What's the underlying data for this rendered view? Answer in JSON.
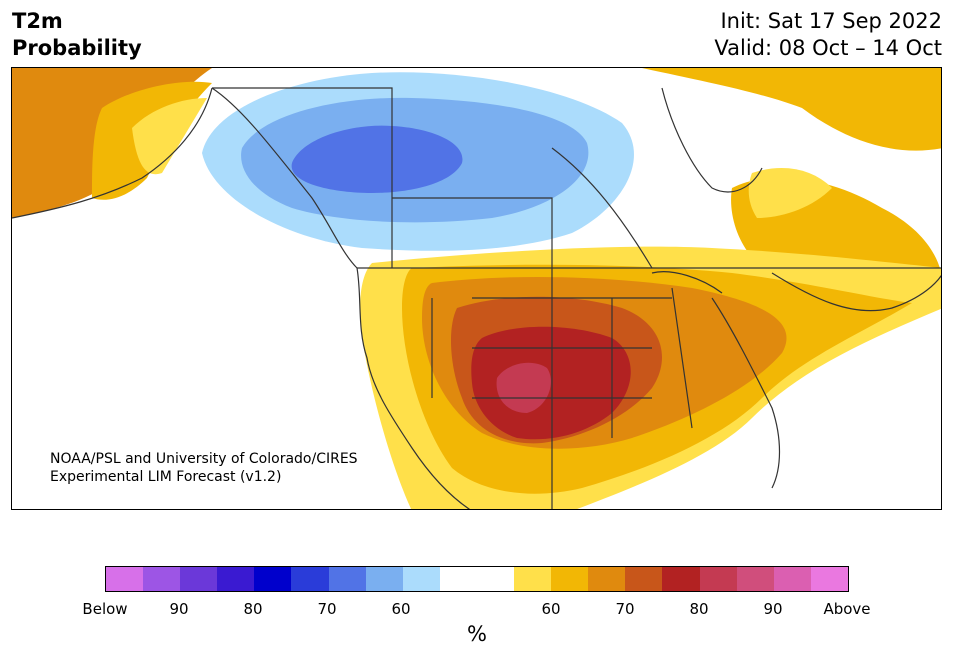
{
  "header": {
    "variable": "T2m",
    "product": "Probability",
    "init": "Init: Sat 17 Sep 2022",
    "valid": "Valid: 08 Oct – 14 Oct"
  },
  "map": {
    "region": "North America",
    "credit_line1": "NOAA/PSL and University of Colorado/CIRES",
    "credit_line2": "Experimental LIM Forecast (v1.2)"
  },
  "colorbar": {
    "colors": [
      "#d770e9",
      "#9d55e5",
      "#6b38d9",
      "#3a1ad1",
      "#0000cc",
      "#2a3cd9",
      "#5173e6",
      "#7aaff0",
      "#abdcfc",
      "#ffffff",
      "#ffffff",
      "#ffe04a",
      "#f2b705",
      "#e08a0e",
      "#c8561a",
      "#b22222",
      "#c43a52",
      "#d04e7c",
      "#db5fb1",
      "#ea78e0"
    ],
    "ticks": [
      "Below",
      "90",
      "80",
      "70",
      "60",
      "60",
      "70",
      "80",
      "90",
      "Above"
    ],
    "unit": "%"
  },
  "legend": {
    "below_colors": [
      "#abdcfc",
      "#7aaff0",
      "#5173e6"
    ],
    "above_colors": [
      "#ffe04a",
      "#f2b705",
      "#e08a0e",
      "#c8561a",
      "#b22222",
      "#c43a52"
    ]
  }
}
